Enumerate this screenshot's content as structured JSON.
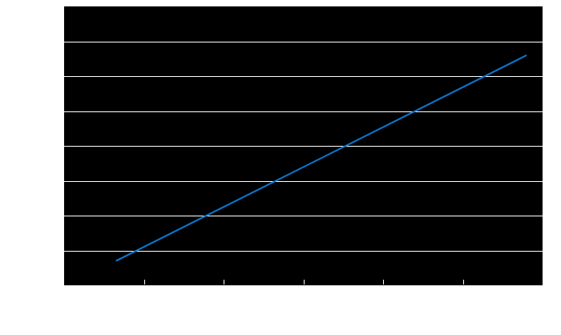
{
  "chart_data": {
    "type": "line",
    "title": "",
    "xlabel": "",
    "ylabel": "",
    "xlim": [
      0,
      6
    ],
    "ylim": [
      0,
      8
    ],
    "grid": {
      "y": true,
      "x": false
    },
    "x_ticks": [
      1,
      2,
      3,
      4,
      5
    ],
    "y_gridlines": [
      1,
      2,
      3,
      4,
      5,
      6,
      7
    ],
    "series": [
      {
        "x": [
          0.65,
          5.8
        ],
        "y": [
          0.7,
          6.6
        ]
      }
    ]
  },
  "colors": {
    "plot_background": "#000000",
    "page_background": "#ffffff",
    "gridline": "#ffffff",
    "tick": "#000000",
    "series": [
      "#0a7ad6"
    ]
  }
}
